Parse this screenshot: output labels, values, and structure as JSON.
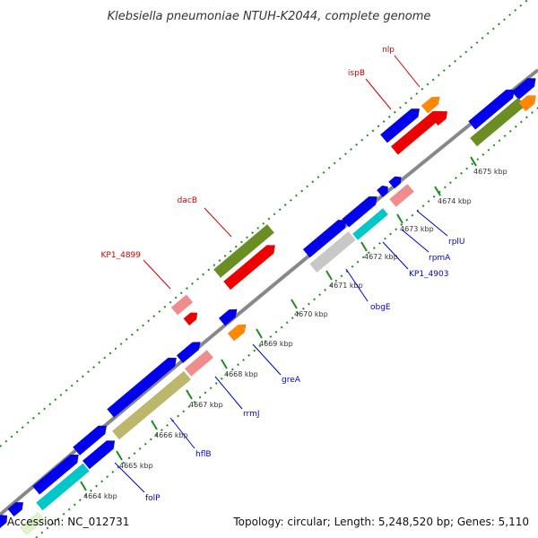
{
  "title": "Klebsiella pneumoniae NTUH-K2044, complete genome",
  "footer": {
    "accession": "Accession: NC_012731",
    "summary": "Topology: circular; Length: 5,248,520 bp; Genes: 5,110"
  },
  "colors": {
    "backbone": "#888888",
    "tick": "#1f8a1f",
    "plus_label": "#cc0000",
    "minus_label": "#0000cc",
    "blue": "#0000ee",
    "red": "#ee0000",
    "orange": "#ff8800",
    "pink": "#f08c8c",
    "olive": "#6b8e23",
    "khaki": "#bdb76b",
    "cyan": "#00c8c8",
    "gray": "#c8c8c8",
    "pale": "#dff5c8"
  },
  "ticks": [
    {
      "label": "4664 kbp"
    },
    {
      "label": "4665 kbp"
    },
    {
      "label": "4666 kbp"
    },
    {
      "label": "4667 kbp"
    },
    {
      "label": "4668 kbp"
    },
    {
      "label": "4669 kbp"
    },
    {
      "label": "4670 kbp"
    },
    {
      "label": "4671 kbp"
    },
    {
      "label": "4672 kbp"
    },
    {
      "label": "4673 kbp"
    },
    {
      "label": "4674 kbp"
    },
    {
      "label": "4675 kbp"
    }
  ],
  "gene_labels": [
    {
      "name": "nlp",
      "strand": "plus"
    },
    {
      "name": "ispB",
      "strand": "plus"
    },
    {
      "name": "dacB",
      "strand": "plus"
    },
    {
      "name": "KP1_4899",
      "strand": "plus"
    },
    {
      "name": "rplU",
      "strand": "minus"
    },
    {
      "name": "rpmA",
      "strand": "minus"
    },
    {
      "name": "KP1_4903",
      "strand": "minus"
    },
    {
      "name": "obgE",
      "strand": "minus"
    },
    {
      "name": "greA",
      "strand": "minus"
    },
    {
      "name": "rrmJ",
      "strand": "minus"
    },
    {
      "name": "hflB",
      "strand": "minus"
    },
    {
      "name": "folP",
      "strand": "minus"
    }
  ]
}
